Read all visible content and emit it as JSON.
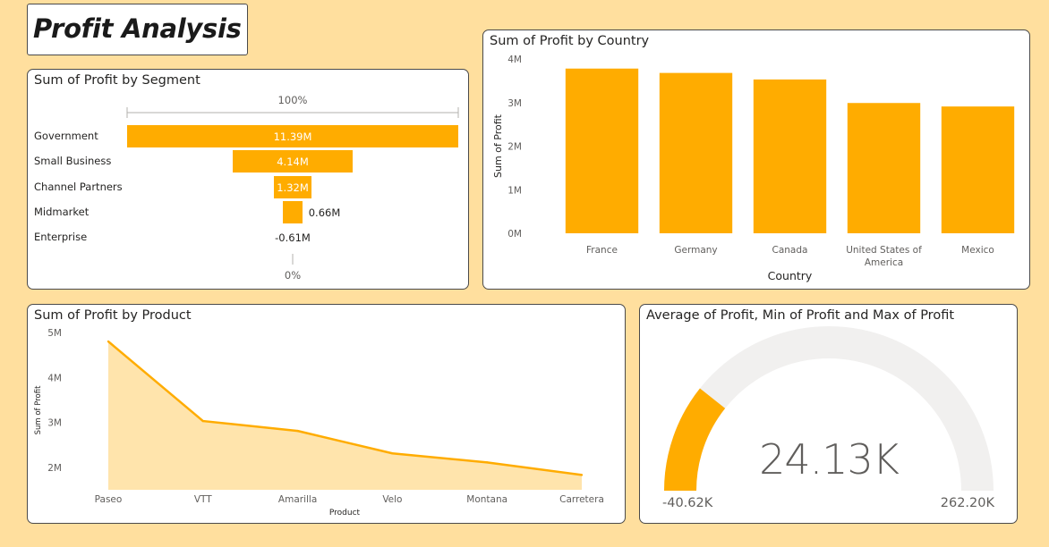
{
  "page": {
    "title": "Profit Analysis"
  },
  "colors": {
    "accent": "#FFAC00",
    "area_fill": "#FFDF9E",
    "gauge_track": "#F1F0EF",
    "background": "#FFDF9E"
  },
  "chart_data": [
    {
      "id": "segment",
      "type": "funnel",
      "title": "Sum of Profit by Segment",
      "top_percent_label": "100%",
      "bottom_percent_label": "0%",
      "categories": [
        "Government",
        "Small Business",
        "Channel Partners",
        "Midmarket",
        "Enterprise"
      ],
      "values": [
        11.39,
        4.14,
        1.32,
        0.66,
        -0.61
      ],
      "value_labels": [
        "11.39M",
        "4.14M",
        "1.32M",
        "0.66M",
        "-0.61M"
      ],
      "unit": "M"
    },
    {
      "id": "country",
      "type": "bar",
      "title": "Sum of Profit by Country",
      "categories": [
        "France",
        "Germany",
        "Canada",
        "United States of America",
        "Mexico"
      ],
      "category_labels": [
        [
          "France"
        ],
        [
          "Germany"
        ],
        [
          "Canada"
        ],
        [
          "United States of",
          "America"
        ],
        [
          "Mexico"
        ]
      ],
      "values": [
        3.78,
        3.68,
        3.53,
        2.99,
        2.91
      ],
      "xlabel": "Country",
      "ylabel": "Sum of Profit",
      "ylim": [
        0,
        4
      ],
      "yticks": [
        0,
        1,
        2,
        3,
        4
      ],
      "ytick_labels": [
        "0M",
        "1M",
        "2M",
        "3M",
        "4M"
      ],
      "grid": false
    },
    {
      "id": "product",
      "type": "area",
      "title": "Sum of Profit by Product",
      "categories": [
        "Paseo",
        "VTT",
        "Amarilla",
        "Velo",
        "Montana",
        "Carretera"
      ],
      "values": [
        4.8,
        3.03,
        2.81,
        2.31,
        2.11,
        1.83
      ],
      "xlabel": "Product",
      "ylabel": "Sum of Profit",
      "ylim": [
        1.5,
        5
      ],
      "yticks": [
        2,
        3,
        4,
        5
      ],
      "ytick_labels": [
        "2M",
        "3M",
        "4M",
        "5M"
      ],
      "grid": false
    },
    {
      "id": "gauge",
      "type": "gauge",
      "title": "Average of Profit, Min of Profit and Max of Profit",
      "value": 24.13,
      "min": -40.62,
      "max": 262.2,
      "value_label": "24.13K",
      "min_label": "-40.62K",
      "max_label": "262.20K"
    }
  ]
}
